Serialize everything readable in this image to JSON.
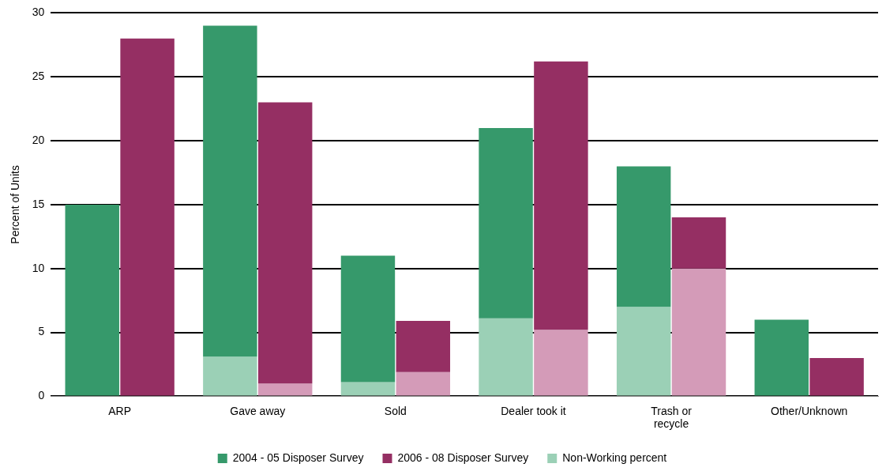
{
  "chart_data": {
    "type": "bar",
    "ylabel": "Percent of Units",
    "categories": [
      "ARP",
      "Gave away",
      "Sold",
      "Dealer took it",
      "Trash or\nrecycle",
      "Other/Unknown"
    ],
    "series": [
      {
        "name": "2004 - 05 Disposer Survey",
        "color": "#36996b",
        "values": [
          15,
          25.9,
          9.9,
          14.9,
          11,
          6
        ],
        "base": [
          0,
          3.1,
          1.1,
          6.1,
          7,
          0
        ]
      },
      {
        "name": "2006 - 08 Disposer Survey",
        "color": "#952f63",
        "values": [
          28,
          22,
          4,
          21,
          4,
          3
        ],
        "base": [
          0,
          1,
          1.9,
          5.2,
          10,
          0
        ]
      },
      {
        "name": "Non-Working percent",
        "color": "#9bd0b6",
        "values": [
          0,
          3.1,
          1.1,
          6.1,
          7,
          0
        ]
      },
      {
        "color": "#d49bb8",
        "values": [
          0,
          1,
          1.9,
          5.2,
          10,
          0
        ]
      }
    ],
    "ylim": [
      0,
      30
    ],
    "yticks": [
      0,
      5,
      10,
      15,
      20,
      25,
      30
    ],
    "grid": "y",
    "legend": "bottom"
  }
}
